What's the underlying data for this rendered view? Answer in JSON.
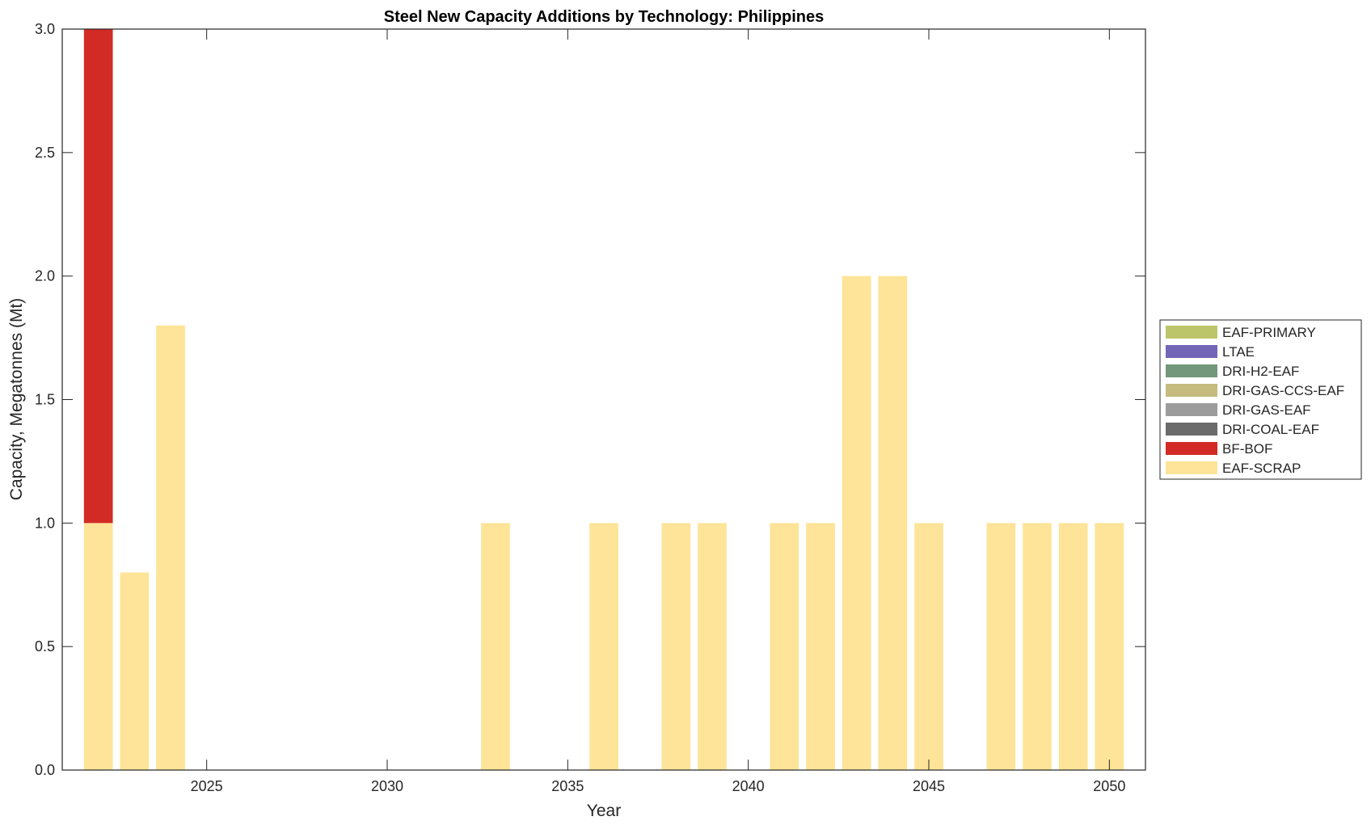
{
  "chart_data": {
    "type": "bar",
    "stacked": true,
    "title": "Steel New Capacity Additions by Technology: Philippines",
    "xlabel": "Year",
    "ylabel": "Capacity, Megatonnes (Mt)",
    "xlim": [
      2021,
      2051
    ],
    "ylim": [
      0,
      3
    ],
    "xticks": [
      2025,
      2030,
      2035,
      2040,
      2045,
      2050
    ],
    "yticks": [
      "0.0",
      "0.5",
      "1.0",
      "1.5",
      "2.0",
      "2.5",
      "3.0"
    ],
    "legend_position": "outside-right",
    "legend": [
      {
        "name": "EAF-PRIMARY",
        "color": "#bdc56b"
      },
      {
        "name": "LTAE",
        "color": "#7366b6"
      },
      {
        "name": "DRI-H2-EAF",
        "color": "#72977a"
      },
      {
        "name": "DRI-GAS-CCS-EAF",
        "color": "#c5bb7f"
      },
      {
        "name": "DRI-GAS-EAF",
        "color": "#9c9c9c"
      },
      {
        "name": "DRI-COAL-EAF",
        "color": "#6b6b6b"
      },
      {
        "name": "BF-BOF",
        "color": "#d22b25"
      },
      {
        "name": "EAF-SCRAP",
        "color": "#fee498"
      }
    ],
    "x": [
      2022,
      2023,
      2024,
      2033,
      2036,
      2038,
      2039,
      2041,
      2042,
      2043,
      2044,
      2045,
      2047,
      2048,
      2049,
      2050
    ],
    "series": [
      {
        "name": "EAF-SCRAP",
        "color": "#fee498",
        "values": [
          1,
          0.8,
          1.8,
          1,
          1,
          1,
          1,
          1,
          1,
          2,
          2,
          1,
          1,
          1,
          1,
          1
        ]
      },
      {
        "name": "BF-BOF",
        "color": "#d22b25",
        "values": [
          2,
          0,
          0,
          0,
          0,
          0,
          0,
          0,
          0,
          0,
          0,
          0,
          0,
          0,
          0,
          0
        ]
      }
    ]
  }
}
